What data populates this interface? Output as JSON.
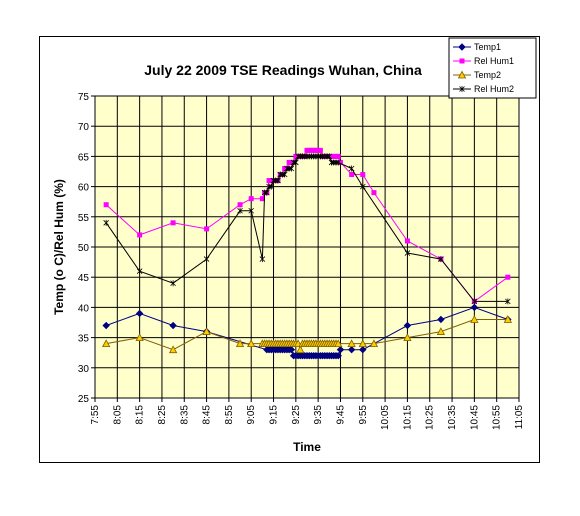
{
  "chart_data": {
    "type": "line",
    "title": "July 22 2009 TSE Readings Wuhan, China",
    "xlabel": "Time",
    "ylabel": "Temp (o C)/Rel Hum (%)",
    "ylim": [
      25,
      75
    ],
    "ytick_step": 5,
    "xlim_minutes": [
      475,
      665
    ],
    "x_ticks": [
      "7:55",
      "8:05",
      "8:15",
      "8:25",
      "8:35",
      "8:45",
      "8:55",
      "9:05",
      "9:15",
      "9:25",
      "9:35",
      "9:45",
      "9:55",
      "10:05",
      "10:15",
      "10:25",
      "10:35",
      "10:45",
      "10:55",
      "11:05"
    ],
    "grid": true,
    "legend_position": "top-right",
    "series": [
      {
        "name": "Temp1",
        "color": "#000080",
        "marker": "diamond",
        "points": [
          [
            "8:00",
            37
          ],
          [
            "8:15",
            39
          ],
          [
            "8:30",
            37
          ],
          [
            "8:45",
            36
          ],
          [
            "9:12",
            33
          ],
          [
            "9:13",
            33
          ],
          [
            "9:14",
            33
          ],
          [
            "9:15",
            33
          ],
          [
            "9:16",
            33
          ],
          [
            "9:17",
            33
          ],
          [
            "9:18",
            33
          ],
          [
            "9:19",
            33
          ],
          [
            "9:20",
            33
          ],
          [
            "9:21",
            33
          ],
          [
            "9:22",
            33
          ],
          [
            "9:23",
            33
          ],
          [
            "9:24",
            32
          ],
          [
            "9:25",
            32
          ],
          [
            "9:26",
            32
          ],
          [
            "9:27",
            32
          ],
          [
            "9:28",
            32
          ],
          [
            "9:29",
            32
          ],
          [
            "9:30",
            32
          ],
          [
            "9:31",
            32
          ],
          [
            "9:32",
            32
          ],
          [
            "9:33",
            32
          ],
          [
            "9:34",
            32
          ],
          [
            "9:35",
            32
          ],
          [
            "9:36",
            32
          ],
          [
            "9:37",
            32
          ],
          [
            "9:38",
            32
          ],
          [
            "9:39",
            32
          ],
          [
            "9:40",
            32
          ],
          [
            "9:41",
            32
          ],
          [
            "9:42",
            32
          ],
          [
            "9:43",
            32
          ],
          [
            "9:44",
            32
          ],
          [
            "9:45",
            33
          ],
          [
            "9:50",
            33
          ],
          [
            "9:55",
            33
          ],
          [
            "10:15",
            37
          ],
          [
            "10:30",
            38
          ],
          [
            "10:45",
            40
          ],
          [
            "11:00",
            38
          ]
        ]
      },
      {
        "name": "Rel Hum1",
        "color": "#ff00ff",
        "marker": "square",
        "points": [
          [
            "8:00",
            57
          ],
          [
            "8:15",
            52
          ],
          [
            "8:30",
            54
          ],
          [
            "8:45",
            53
          ],
          [
            "9:00",
            57
          ],
          [
            "9:05",
            58
          ],
          [
            "9:10",
            58
          ],
          [
            "9:11",
            59
          ],
          [
            "9:12",
            59
          ],
          [
            "9:13",
            61
          ],
          [
            "9:14",
            61
          ],
          [
            "9:15",
            61
          ],
          [
            "9:16",
            61
          ],
          [
            "9:17",
            61
          ],
          [
            "9:18",
            62
          ],
          [
            "9:19",
            62
          ],
          [
            "9:20",
            63
          ],
          [
            "9:21",
            63
          ],
          [
            "9:22",
            64
          ],
          [
            "9:23",
            64
          ],
          [
            "9:24",
            64
          ],
          [
            "9:25",
            65
          ],
          [
            "9:26",
            65
          ],
          [
            "9:27",
            65
          ],
          [
            "9:28",
            65
          ],
          [
            "9:29",
            65
          ],
          [
            "9:30",
            66
          ],
          [
            "9:31",
            66
          ],
          [
            "9:32",
            66
          ],
          [
            "9:33",
            66
          ],
          [
            "9:34",
            66
          ],
          [
            "9:35",
            66
          ],
          [
            "9:36",
            66
          ],
          [
            "9:37",
            65
          ],
          [
            "9:38",
            65
          ],
          [
            "9:39",
            65
          ],
          [
            "9:40",
            65
          ],
          [
            "9:41",
            65
          ],
          [
            "9:42",
            65
          ],
          [
            "9:43",
            65
          ],
          [
            "9:44",
            65
          ],
          [
            "9:45",
            64
          ],
          [
            "9:50",
            62
          ],
          [
            "9:55",
            62
          ],
          [
            "10:00",
            59
          ],
          [
            "10:15",
            51
          ],
          [
            "10:30",
            48
          ],
          [
            "10:45",
            41
          ],
          [
            "11:00",
            45
          ]
        ]
      },
      {
        "name": "Temp2",
        "color": "#806000",
        "fill": "#ffcc00",
        "marker": "triangle",
        "points": [
          [
            "8:00",
            34
          ],
          [
            "8:15",
            35
          ],
          [
            "8:30",
            33
          ],
          [
            "8:45",
            36
          ],
          [
            "9:00",
            34
          ],
          [
            "9:05",
            34
          ],
          [
            "9:10",
            34
          ],
          [
            "9:11",
            34
          ],
          [
            "9:12",
            34
          ],
          [
            "9:13",
            34
          ],
          [
            "9:14",
            34
          ],
          [
            "9:15",
            34
          ],
          [
            "9:16",
            34
          ],
          [
            "9:17",
            34
          ],
          [
            "9:18",
            34
          ],
          [
            "9:19",
            34
          ],
          [
            "9:20",
            34
          ],
          [
            "9:21",
            34
          ],
          [
            "9:22",
            34
          ],
          [
            "9:23",
            34
          ],
          [
            "9:24",
            34
          ],
          [
            "9:25",
            34
          ],
          [
            "9:26",
            34
          ],
          [
            "9:27",
            33
          ],
          [
            "9:28",
            34
          ],
          [
            "9:29",
            34
          ],
          [
            "9:30",
            34
          ],
          [
            "9:31",
            34
          ],
          [
            "9:32",
            34
          ],
          [
            "9:33",
            34
          ],
          [
            "9:34",
            34
          ],
          [
            "9:35",
            34
          ],
          [
            "9:36",
            34
          ],
          [
            "9:37",
            34
          ],
          [
            "9:38",
            34
          ],
          [
            "9:39",
            34
          ],
          [
            "9:40",
            34
          ],
          [
            "9:41",
            34
          ],
          [
            "9:42",
            34
          ],
          [
            "9:43",
            34
          ],
          [
            "9:44",
            34
          ],
          [
            "9:50",
            34
          ],
          [
            "9:55",
            34
          ],
          [
            "10:00",
            34
          ],
          [
            "10:15",
            35
          ],
          [
            "10:30",
            36
          ],
          [
            "10:45",
            38
          ],
          [
            "11:00",
            38
          ]
        ]
      },
      {
        "name": "Rel Hum2",
        "color": "#000000",
        "marker": "star",
        "points": [
          [
            "8:00",
            54
          ],
          [
            "8:15",
            46
          ],
          [
            "8:30",
            44
          ],
          [
            "8:45",
            48
          ],
          [
            "9:00",
            56
          ],
          [
            "9:05",
            56
          ],
          [
            "9:10",
            48
          ],
          [
            "9:11",
            59
          ],
          [
            "9:12",
            59
          ],
          [
            "9:13",
            60
          ],
          [
            "9:14",
            60
          ],
          [
            "9:15",
            61
          ],
          [
            "9:16",
            61
          ],
          [
            "9:17",
            61
          ],
          [
            "9:18",
            62
          ],
          [
            "9:19",
            62
          ],
          [
            "9:20",
            62
          ],
          [
            "9:21",
            63
          ],
          [
            "9:22",
            63
          ],
          [
            "9:23",
            63
          ],
          [
            "9:24",
            64
          ],
          [
            "9:25",
            64
          ],
          [
            "9:26",
            65
          ],
          [
            "9:27",
            65
          ],
          [
            "9:28",
            65
          ],
          [
            "9:29",
            65
          ],
          [
            "9:30",
            65
          ],
          [
            "9:31",
            65
          ],
          [
            "9:32",
            65
          ],
          [
            "9:33",
            65
          ],
          [
            "9:34",
            65
          ],
          [
            "9:35",
            65
          ],
          [
            "9:36",
            65
          ],
          [
            "9:37",
            65
          ],
          [
            "9:38",
            65
          ],
          [
            "9:39",
            65
          ],
          [
            "9:40",
            65
          ],
          [
            "9:41",
            64
          ],
          [
            "9:42",
            64
          ],
          [
            "9:43",
            64
          ],
          [
            "9:44",
            64
          ],
          [
            "9:50",
            63
          ],
          [
            "9:55",
            60
          ],
          [
            "10:15",
            49
          ],
          [
            "10:30",
            48
          ],
          [
            "10:45",
            41
          ],
          [
            "11:00",
            41
          ]
        ]
      }
    ]
  }
}
